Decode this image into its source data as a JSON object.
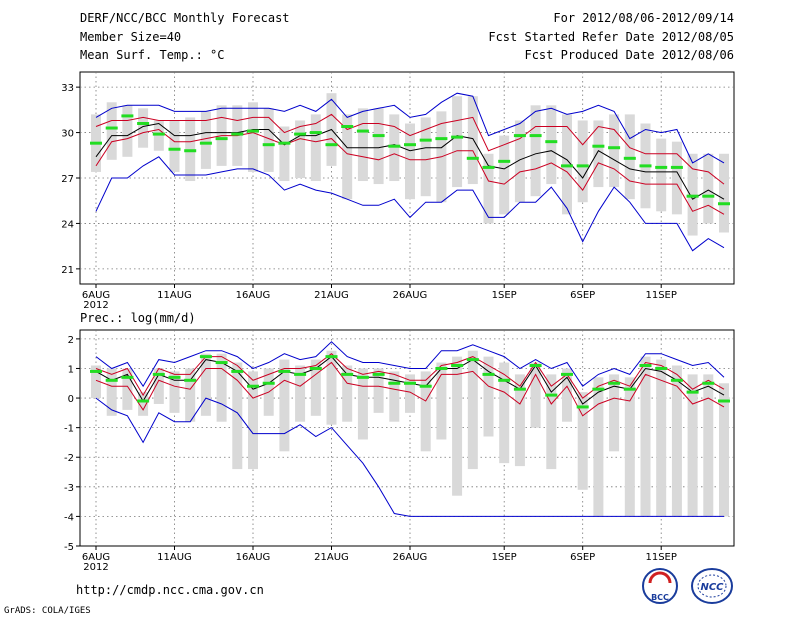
{
  "header": {
    "left": [
      "DERF/NCC/BCC Monthly Forecast",
      "Member Size=40",
      "Mean Surf. Temp.: °C"
    ],
    "right": [
      "For 2012/08/06-2012/09/14",
      "Fcst Started Refer Date 2012/08/05",
      "Fcst Produced Date 2012/08/06"
    ]
  },
  "footer": {
    "url": "http://cmdp.ncc.cma.gov.cn",
    "credit": "GrADS: COLA/IGES"
  },
  "logos": {
    "left": "BCC",
    "right": "NCC"
  },
  "colors": {
    "envelope": "#0000cc",
    "spread": "#cc0022",
    "mean": "#000000",
    "median": "#22dd22",
    "box": "#d9d9d9"
  },
  "chart_data": [
    {
      "id": "temp",
      "type": "box",
      "title": "Mean Surf. Temp.: °C",
      "ylim": [
        20,
        34
      ],
      "yticks": [
        21,
        24,
        27,
        30,
        33
      ],
      "xticks": [
        {
          "day": 0,
          "label": "6AUG",
          "sub": "2012"
        },
        {
          "day": 5,
          "label": "11AUG"
        },
        {
          "day": 10,
          "label": "16AUG"
        },
        {
          "day": 15,
          "label": "21AUG"
        },
        {
          "day": 20,
          "label": "26AUG"
        },
        {
          "day": 26,
          "label": "1SEP"
        },
        {
          "day": 31,
          "label": "6SEP"
        },
        {
          "day": 36,
          "label": "11SEP"
        }
      ],
      "days": 40,
      "series": {
        "max": [
          31.0,
          31.6,
          31.8,
          31.8,
          31.8,
          31.4,
          31.4,
          31.4,
          31.6,
          31.6,
          31.6,
          31.6,
          31.4,
          31.8,
          31.4,
          32.2,
          31.0,
          31.4,
          31.6,
          31.8,
          31.0,
          31.2,
          32.0,
          32.6,
          32.4,
          29.8,
          30.2,
          30.6,
          31.4,
          31.6,
          31.2,
          31.4,
          31.8,
          31.4,
          29.6,
          30.2,
          30.0,
          30.2,
          28.0,
          28.6,
          28.0
        ],
        "q75": [
          30.4,
          30.8,
          30.8,
          31.0,
          30.8,
          30.8,
          30.8,
          30.8,
          31.0,
          30.8,
          31.0,
          31.0,
          30.0,
          30.4,
          30.6,
          31.2,
          30.2,
          30.6,
          30.6,
          30.4,
          29.8,
          30.2,
          30.6,
          30.8,
          31.0,
          28.8,
          29.2,
          29.6,
          30.4,
          30.4,
          30.4,
          29.2,
          30.4,
          30.2,
          29.0,
          28.6,
          28.6,
          28.6,
          27.6,
          27.4,
          26.6
        ],
        "mean": [
          28.4,
          29.8,
          29.8,
          30.4,
          30.6,
          29.8,
          29.8,
          30.0,
          30.0,
          30.0,
          30.2,
          30.2,
          29.2,
          29.8,
          29.8,
          30.2,
          29.0,
          29.0,
          29.0,
          29.2,
          28.8,
          29.0,
          29.0,
          29.8,
          29.6,
          27.8,
          27.6,
          28.2,
          28.6,
          28.8,
          28.2,
          27.0,
          28.8,
          28.2,
          27.6,
          27.4,
          27.4,
          27.4,
          25.6,
          26.2,
          25.6
        ],
        "q25": [
          27.8,
          29.4,
          29.6,
          30.0,
          30.2,
          29.4,
          29.4,
          29.6,
          29.8,
          29.8,
          30.0,
          29.6,
          29.2,
          29.6,
          29.4,
          29.6,
          28.6,
          28.4,
          28.2,
          28.6,
          28.2,
          28.2,
          28.4,
          28.8,
          28.8,
          26.8,
          26.6,
          27.4,
          27.6,
          28.0,
          27.4,
          26.2,
          28.0,
          27.6,
          26.8,
          26.6,
          26.6,
          26.6,
          24.8,
          25.2,
          24.6
        ],
        "min": [
          24.8,
          27.0,
          27.0,
          27.8,
          28.4,
          27.2,
          27.2,
          27.2,
          27.4,
          27.6,
          27.6,
          27.2,
          26.2,
          26.6,
          26.2,
          26.0,
          25.6,
          25.2,
          25.2,
          25.6,
          24.4,
          25.4,
          25.4,
          26.2,
          26.2,
          24.4,
          24.4,
          25.4,
          25.4,
          26.4,
          25.0,
          22.8,
          24.8,
          26.4,
          25.4,
          24.0,
          24.0,
          24.0,
          22.2,
          23.0,
          22.4
        ],
        "median": [
          29.3,
          30.3,
          31.1,
          30.6,
          29.9,
          28.9,
          28.8,
          29.3,
          29.6,
          29.9,
          30.1,
          29.2,
          29.3,
          29.9,
          30.0,
          29.2,
          30.4,
          30.1,
          29.8,
          29.1,
          29.2,
          29.5,
          29.6,
          29.7,
          28.3,
          27.7,
          28.1,
          29.8,
          29.8,
          29.4,
          27.8,
          27.8,
          29.1,
          29.0,
          28.3,
          27.8,
          27.7,
          27.7,
          25.8,
          25.8,
          25.3
        ],
        "barHi": [
          31.2,
          32.0,
          31.8,
          31.6,
          30.8,
          30.8,
          31.0,
          31.4,
          31.8,
          31.8,
          32.0,
          31.6,
          30.4,
          30.8,
          31.2,
          32.6,
          31.2,
          31.6,
          31.6,
          31.2,
          30.6,
          31.0,
          31.4,
          32.4,
          32.4,
          28.6,
          29.8,
          30.8,
          31.8,
          31.8,
          31.2,
          30.8,
          30.8,
          31.2,
          31.2,
          30.6,
          29.6,
          29.4,
          28.6,
          28.6,
          28.6
        ],
        "barLo": [
          27.4,
          28.2,
          28.4,
          29.0,
          28.8,
          27.4,
          26.8,
          27.6,
          27.8,
          27.8,
          27.4,
          27.4,
          26.8,
          27.0,
          26.8,
          27.8,
          25.6,
          26.8,
          26.6,
          26.8,
          25.6,
          25.8,
          25.4,
          26.4,
          26.6,
          24.0,
          24.6,
          25.4,
          25.8,
          26.6,
          24.6,
          25.4,
          26.4,
          26.4,
          25.6,
          25.0,
          24.8,
          24.6,
          23.2,
          24.0,
          23.4
        ]
      }
    },
    {
      "id": "prec",
      "type": "box",
      "title": "Prec.: log(mm/d)",
      "ylim": [
        -5,
        2.3
      ],
      "yticks": [
        -5,
        -4,
        -3,
        -2,
        -1,
        0,
        1,
        2
      ],
      "xticks": [
        {
          "day": 0,
          "label": "6AUG",
          "sub": "2012"
        },
        {
          "day": 5,
          "label": "11AUG"
        },
        {
          "day": 10,
          "label": "16AUG"
        },
        {
          "day": 15,
          "label": "21AUG"
        },
        {
          "day": 20,
          "label": "26AUG"
        },
        {
          "day": 26,
          "label": "1SEP"
        },
        {
          "day": 31,
          "label": "6SEP"
        },
        {
          "day": 36,
          "label": "11SEP"
        }
      ],
      "days": 40,
      "series": {
        "max": [
          1.4,
          1.0,
          1.2,
          0.4,
          1.3,
          1.2,
          1.4,
          1.6,
          1.6,
          1.4,
          1.0,
          1.2,
          1.5,
          1.3,
          1.4,
          1.9,
          1.4,
          1.2,
          1.2,
          1.1,
          1.0,
          1.0,
          1.6,
          1.6,
          1.8,
          1.6,
          1.4,
          1.0,
          1.3,
          1.0,
          1.2,
          0.4,
          0.8,
          1.0,
          0.8,
          1.5,
          1.5,
          1.3,
          1.1,
          1.2,
          0.7
        ],
        "q75": [
          1.0,
          0.8,
          1.0,
          0.1,
          1.0,
          0.8,
          0.8,
          1.4,
          1.4,
          1.1,
          0.6,
          0.8,
          1.0,
          1.0,
          1.1,
          1.5,
          1.0,
          0.8,
          0.9,
          0.8,
          0.6,
          0.6,
          1.1,
          1.2,
          1.4,
          1.1,
          0.8,
          0.4,
          1.2,
          0.4,
          0.8,
          0.0,
          0.4,
          0.6,
          0.4,
          1.2,
          1.1,
          0.8,
          0.3,
          0.6,
          0.3
        ],
        "mean": [
          0.9,
          0.6,
          0.8,
          -0.1,
          0.8,
          0.6,
          0.6,
          1.3,
          1.2,
          0.9,
          0.3,
          0.5,
          0.9,
          0.8,
          1.0,
          1.4,
          0.8,
          0.7,
          0.7,
          0.6,
          0.5,
          0.4,
          1.0,
          1.0,
          1.3,
          0.9,
          0.6,
          0.3,
          1.1,
          0.2,
          0.7,
          -0.2,
          0.2,
          0.4,
          0.3,
          1.0,
          0.9,
          0.6,
          0.2,
          0.4,
          0.1
        ],
        "q25": [
          0.6,
          0.4,
          0.4,
          -0.4,
          0.6,
          0.4,
          0.3,
          1.0,
          1.0,
          0.6,
          0.0,
          0.2,
          0.6,
          0.4,
          0.8,
          1.2,
          0.5,
          0.4,
          0.4,
          0.3,
          0.2,
          -0.1,
          0.8,
          0.8,
          0.9,
          0.4,
          0.2,
          -0.2,
          0.8,
          -0.2,
          0.4,
          -0.6,
          -0.2,
          0.0,
          -0.1,
          0.8,
          0.6,
          0.4,
          -0.2,
          0.0,
          -0.3
        ],
        "min": [
          0.0,
          -0.4,
          -0.6,
          -1.5,
          -0.5,
          -0.8,
          -0.8,
          0.0,
          -0.2,
          -0.5,
          -1.2,
          -1.2,
          -1.2,
          -0.9,
          -1.3,
          -1.0,
          -1.6,
          -2.2,
          -3.0,
          -3.9,
          -4.0,
          -4.0,
          -4.0,
          -4.0,
          -4.0,
          -4.0,
          -4.0,
          -4.0,
          -4.0,
          -4.0,
          -4.0,
          -4.0,
          -4.0,
          -4.0,
          -4.0,
          -4.0,
          -4.0,
          -4.0,
          -4.0,
          -4.0,
          -4.0
        ],
        "median": [
          0.9,
          0.6,
          0.7,
          -0.1,
          0.8,
          0.7,
          0.6,
          1.4,
          1.2,
          0.9,
          0.4,
          0.5,
          0.9,
          0.8,
          1.0,
          1.4,
          0.8,
          0.7,
          0.8,
          0.5,
          0.5,
          0.4,
          1.0,
          1.1,
          1.3,
          0.8,
          0.6,
          0.3,
          1.1,
          0.1,
          0.8,
          -0.3,
          0.3,
          0.5,
          0.3,
          1.1,
          1.0,
          0.6,
          0.2,
          0.5,
          -0.1
        ],
        "barHi": [
          1.1,
          1.0,
          1.0,
          0.2,
          1.0,
          0.9,
          1.0,
          1.5,
          1.5,
          1.2,
          0.9,
          1.0,
          1.3,
          1.1,
          1.3,
          1.6,
          1.1,
          1.0,
          1.0,
          0.9,
          0.8,
          0.9,
          1.2,
          1.4,
          1.6,
          1.4,
          1.2,
          0.8,
          1.2,
          0.8,
          1.0,
          0.2,
          0.7,
          0.8,
          0.7,
          1.4,
          1.3,
          1.1,
          0.8,
          0.8,
          0.5
        ],
        "barLo": [
          0.0,
          -0.6,
          -0.4,
          -0.6,
          -0.2,
          -0.5,
          -0.8,
          -0.6,
          -0.8,
          -2.4,
          -2.4,
          -0.6,
          -1.8,
          -0.8,
          -0.6,
          -0.9,
          -0.8,
          -1.4,
          -0.5,
          -0.8,
          -0.5,
          -1.8,
          -1.4,
          -3.3,
          -2.4,
          -1.3,
          -2.2,
          -2.3,
          -1.0,
          -2.4,
          -0.8,
          -3.1,
          -4.0,
          -1.8,
          -4.0,
          -4.0,
          -4.0,
          -4.0,
          -4.0,
          -4.0,
          -4.0
        ]
      }
    }
  ]
}
